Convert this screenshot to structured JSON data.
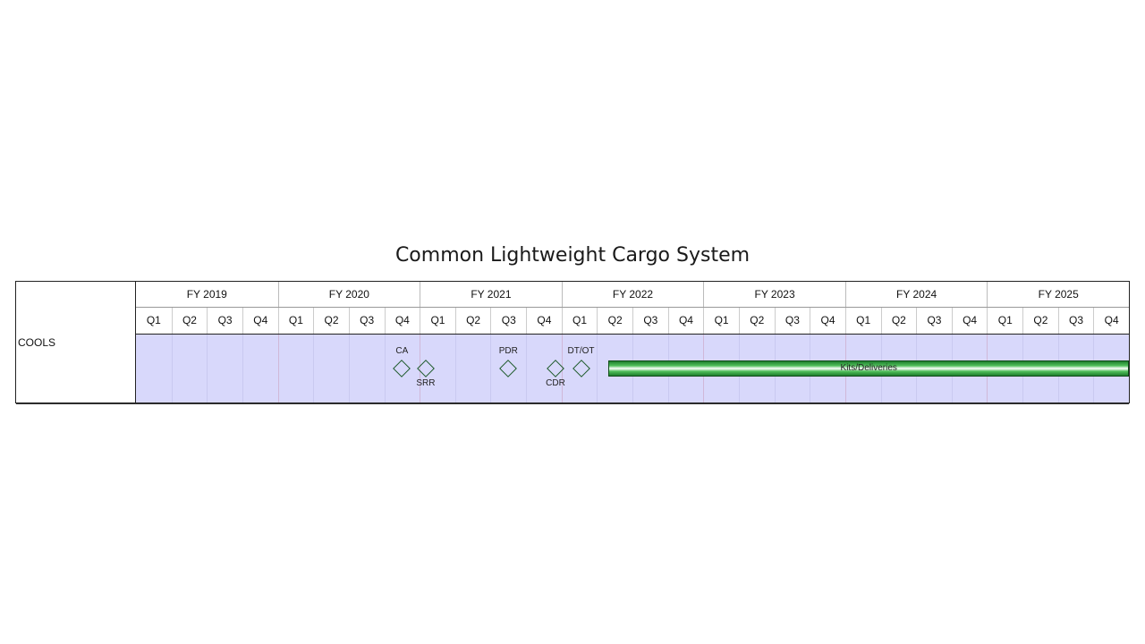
{
  "title": "Common Lightweight Cargo System",
  "years": [
    "FY 2019",
    "FY 2020",
    "FY 2021",
    "FY 2022",
    "FY 2023",
    "FY 2024",
    "FY 2025"
  ],
  "quarters": [
    "Q1",
    "Q2",
    "Q3",
    "Q4"
  ],
  "rows": [
    {
      "label": "COOLS",
      "milestones": [
        {
          "label": "CA",
          "label_pos": "above",
          "quarter_index": 7.0
        },
        {
          "label": "SRR",
          "label_pos": "below",
          "quarter_index": 7.67
        },
        {
          "label": "PDR",
          "label_pos": "above",
          "quarter_index": 10.0
        },
        {
          "label": "CDR",
          "label_pos": "below",
          "quarter_index": 11.33
        },
        {
          "label": "DT/OT",
          "label_pos": "above",
          "quarter_index": 12.05
        }
      ],
      "bars": [
        {
          "label": "Kits/Deliveries",
          "start_quarter_index": 13.33,
          "end_quarter_index": 28.0
        }
      ]
    }
  ],
  "colors": {
    "lane_background": "#d8d8fb",
    "milestone_outline": "#1d5a2a",
    "bar_green": "#1e7d2d"
  }
}
